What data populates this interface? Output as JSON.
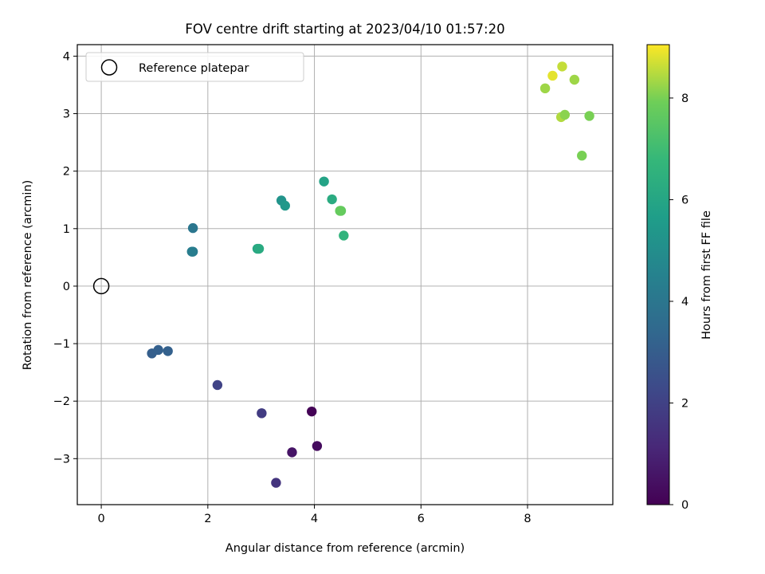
{
  "chart_data": {
    "type": "scatter",
    "title": "FOV centre drift starting at 2023/04/10 01:57:20",
    "xlabel": "Angular distance from reference (arcmin)",
    "ylabel": "Rotation from reference (arcmin)",
    "xlim": [
      -0.45,
      9.6
    ],
    "ylim": [
      -3.8,
      4.2
    ],
    "xticks": [
      0,
      2,
      4,
      6,
      8
    ],
    "yticks": [
      -3,
      -2,
      -1,
      0,
      1,
      2,
      3,
      4
    ],
    "grid": true,
    "legend": {
      "position": "top-left",
      "entries": [
        "Reference platepar"
      ]
    },
    "reference_point": {
      "x": 0,
      "y": 0
    },
    "colorbar": {
      "label": "Hours from first FF file",
      "colormap": "viridis",
      "range": [
        0,
        9.05
      ],
      "ticks": [
        0,
        2,
        4,
        6,
        8
      ]
    },
    "points": [
      {
        "x": 3.95,
        "y": -2.18,
        "hours": 0.05
      },
      {
        "x": 4.05,
        "y": -2.78,
        "hours": 0.3
      },
      {
        "x": 3.58,
        "y": -2.89,
        "hours": 0.55
      },
      {
        "x": 3.28,
        "y": -3.42,
        "hours": 1.55
      },
      {
        "x": 3.01,
        "y": -2.21,
        "hours": 1.8
      },
      {
        "x": 2.18,
        "y": -1.72,
        "hours": 2.05
      },
      {
        "x": 0.95,
        "y": -1.17,
        "hours": 3.05
      },
      {
        "x": 1.07,
        "y": -1.11,
        "hours": 3.1
      },
      {
        "x": 1.25,
        "y": -1.13,
        "hours": 3.15
      },
      {
        "x": 1.72,
        "y": 1.01,
        "hours": 4.0
      },
      {
        "x": 1.72,
        "y": 0.6,
        "hours": 4.2
      },
      {
        "x": 1.7,
        "y": 0.6,
        "hours": 4.3
      },
      {
        "x": 3.38,
        "y": 1.49,
        "hours": 5.25
      },
      {
        "x": 3.45,
        "y": 1.4,
        "hours": 5.4
      },
      {
        "x": 2.93,
        "y": 0.65,
        "hours": 6.05
      },
      {
        "x": 2.96,
        "y": 0.65,
        "hours": 6.2
      },
      {
        "x": 4.18,
        "y": 1.82,
        "hours": 5.9
      },
      {
        "x": 4.33,
        "y": 1.51,
        "hours": 6.25
      },
      {
        "x": 4.55,
        "y": 0.88,
        "hours": 6.6
      },
      {
        "x": 4.5,
        "y": 1.31,
        "hours": 7.65
      },
      {
        "x": 4.48,
        "y": 1.31,
        "hours": 7.75
      },
      {
        "x": 8.33,
        "y": 3.44,
        "hours": 8.3
      },
      {
        "x": 8.47,
        "y": 3.66,
        "hours": 8.85
      },
      {
        "x": 8.65,
        "y": 3.82,
        "hours": 8.6
      },
      {
        "x": 8.88,
        "y": 3.59,
        "hours": 8.3
      },
      {
        "x": 8.63,
        "y": 2.94,
        "hours": 8.45
      },
      {
        "x": 8.7,
        "y": 2.98,
        "hours": 8.15
      },
      {
        "x": 9.16,
        "y": 2.96,
        "hours": 8.0
      },
      {
        "x": 9.02,
        "y": 2.27,
        "hours": 8.0
      }
    ]
  }
}
